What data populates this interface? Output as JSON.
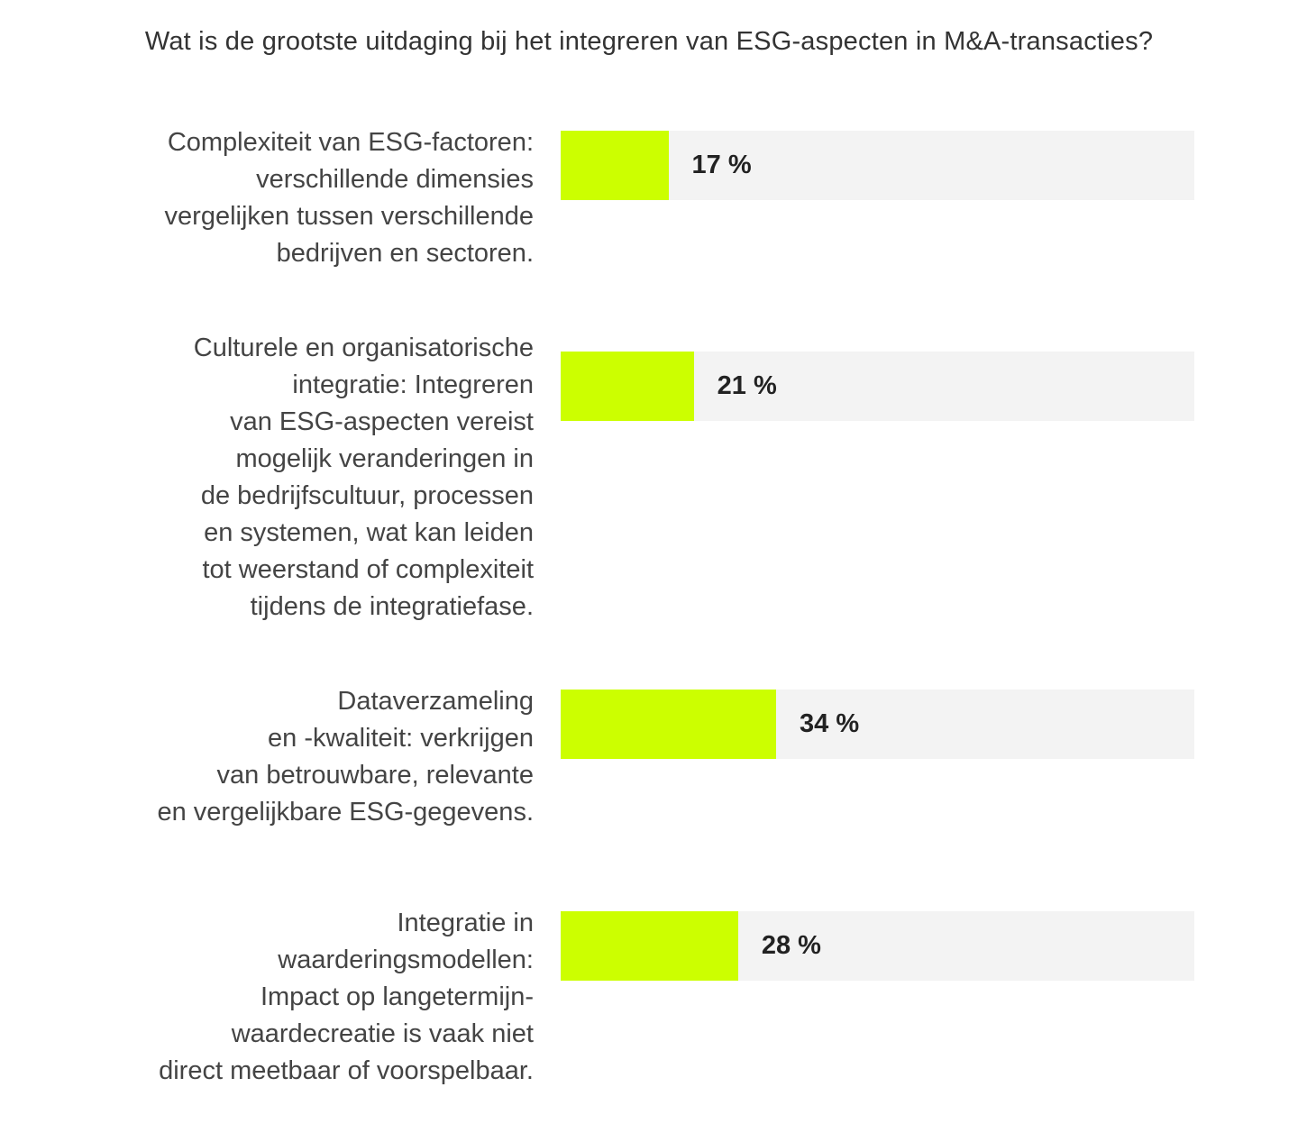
{
  "chart_data": {
    "type": "bar",
    "orientation": "horizontal",
    "title": "Wat is de grootste uitdaging bij het integreren van ESG-aspecten in M&A-transacties?",
    "xlim": [
      0,
      100
    ],
    "unit": "%",
    "grid": false,
    "colors": {
      "bar": "#ccff00",
      "track": "#f3f3f3",
      "text": "#444444",
      "value": "#222222"
    },
    "categories": [
      [
        "Complexiteit van ESG-factoren:",
        "verschillende dimensies",
        "vergelijken tussen verschillende",
        "bedrijven en sectoren."
      ],
      [
        "Culturele en organisatorische",
        "integratie: Integreren",
        "van ESG-aspecten vereist",
        "mogelijk veranderingen in",
        "de bedrijfscultuur, processen",
        "en systemen, wat kan leiden",
        "tot weerstand of complexiteit",
        "tijdens de integratiefase."
      ],
      [
        "Dataverzameling",
        "en -kwaliteit: verkrijgen",
        "van betrouwbare, relevante",
        "en vergelijkbare ESG-gegevens."
      ],
      [
        "Integratie in",
        "waarderingsmodellen:",
        "Impact op langetermijn-",
        "waardecreatie is vaak niet",
        "direct meetbaar of voorspelbaar."
      ]
    ],
    "values": [
      17,
      21,
      34,
      28
    ],
    "value_labels": [
      "17 %",
      "21 %",
      "34 %",
      "28 %"
    ]
  }
}
